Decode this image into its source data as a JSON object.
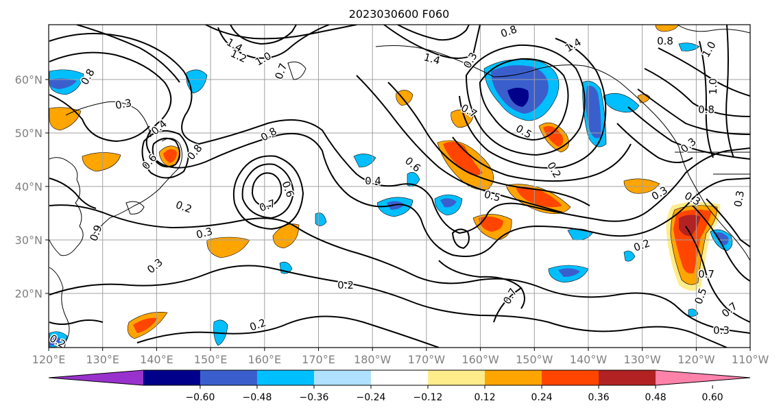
{
  "title": "2023030600 F060",
  "map": {
    "lon_labels": [
      "120°E",
      "130°E",
      "140°E",
      "150°E",
      "160°E",
      "170°E",
      "180°W",
      "170°W",
      "160°W",
      "150°W",
      "140°W",
      "130°W",
      "120°W",
      "110°W"
    ],
    "lat_labels": [
      "20°N",
      "30°N",
      "40°N",
      "50°N",
      "60°N"
    ],
    "grid": true,
    "contour_labels": [
      "0.8",
      "0.3",
      "0.4",
      "0.6",
      "0.8",
      "0.2",
      "0.3",
      "0.3",
      "0.6",
      "0.7",
      "0.9",
      "1.2",
      "1.0",
      "1.4",
      "0.7",
      "0.8",
      "1.4",
      "0.3",
      "0.8",
      "0.7",
      "0.5",
      "0.6",
      "0.4",
      "0.5",
      "0.2",
      "0.2",
      "0.2",
      "0.7",
      "1.4",
      "0.8",
      "1.0",
      "1.0",
      "0.8",
      "0.3",
      "0.3",
      "0.3",
      "0.3",
      "0.2",
      "0.7",
      "0.5",
      "0.3",
      "0.7",
      "0.2"
    ]
  },
  "colorbar": {
    "ticks": [
      "−0.60",
      "−0.48",
      "−0.36",
      "−0.24",
      "−0.12",
      "0.12",
      "0.24",
      "0.36",
      "0.48",
      "0.60"
    ],
    "colors": [
      "#9932cc",
      "#00008b",
      "#3a5fcd",
      "#00bfff",
      "#b0e2ff",
      "#ffffff",
      "#ffec8b",
      "#ffa500",
      "#ff4500",
      "#b22222",
      "#ff82ab"
    ]
  }
}
